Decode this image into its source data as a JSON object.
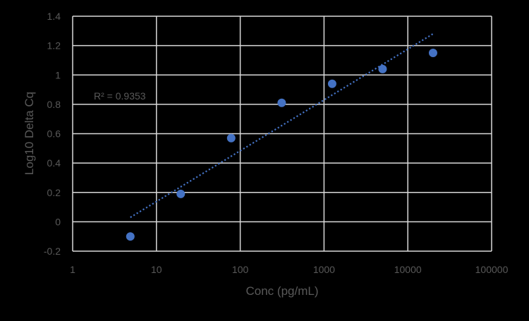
{
  "chart_data": {
    "type": "scatter",
    "title": "",
    "xlabel": "Conc (pg/mL)",
    "ylabel": "Log10 Delta Cq",
    "x_scale": "log",
    "xlim": [
      1,
      100000
    ],
    "ylim": [
      -0.2,
      1.4
    ],
    "x_ticks": [
      1,
      10,
      100,
      1000,
      10000,
      100000
    ],
    "x_tick_labels": [
      "1",
      "10",
      "100",
      "1000",
      "10000",
      "100000"
    ],
    "y_ticks": [
      -0.2,
      0,
      0.2,
      0.4,
      0.6,
      0.8,
      1,
      1.2,
      1.4
    ],
    "y_tick_labels": [
      "-0.2",
      "0",
      "0.2",
      "0.4",
      "0.6",
      "0.8",
      "1",
      "1.2",
      "1.4"
    ],
    "grid": true,
    "legend": null,
    "series": [
      {
        "name": "Log10 Delta Cq",
        "color": "#4472C4",
        "x": [
          4.88,
          19.5,
          78,
          312.5,
          1250,
          5000,
          20000
        ],
        "y": [
          -0.1,
          0.19,
          0.57,
          0.81,
          0.94,
          1.04,
          1.15
        ]
      }
    ],
    "trendline": {
      "type": "logarithmic",
      "style": "dotted",
      "color": "#4472C4",
      "x_range": [
        4.88,
        20000
      ],
      "y_start": 0.03,
      "y_end": 1.28,
      "r_squared_label": "R² = 0.9353"
    },
    "annotations": [
      "R² = 0.9353"
    ]
  },
  "colors": {
    "background": "#000000",
    "gridline": "#D9D9D9",
    "text": "#595959",
    "marker": "#4472C4"
  }
}
